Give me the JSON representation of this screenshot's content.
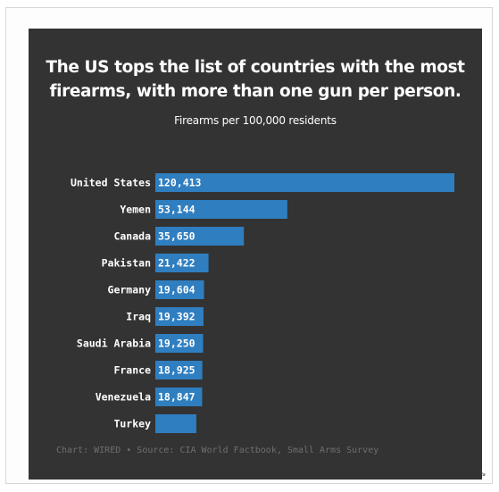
{
  "chart_data": {
    "type": "bar",
    "orientation": "horizontal",
    "title": "The US tops the list of countries with the most firearms, with more than one gun per person.",
    "subtitle": "Firearms per 100,000 residents",
    "categories": [
      "United States",
      "Yemen",
      "Canada",
      "Pakistan",
      "Germany",
      "Iraq",
      "Saudi Arabia",
      "France",
      "Venezuela",
      "Turkey"
    ],
    "values": [
      120413,
      53144,
      35650,
      21422,
      19604,
      19392,
      19250,
      18925,
      18847,
      16500
    ],
    "value_labels": [
      "120,413",
      "53,144",
      "35,650",
      "21,422",
      "19,604",
      "19,392",
      "19,250",
      "18,925",
      "18,847",
      ""
    ],
    "xlim": [
      0,
      120413
    ],
    "bar_color": "#2f7ec0",
    "grid": false,
    "source": "Chart: WIRED • Source: CIA World Factbook, Small Arms Survey"
  },
  "colors": {
    "background": "#333333",
    "bar": "#2f7ec0",
    "text": "#ffffff",
    "source_text": "#6f6f6f"
  }
}
